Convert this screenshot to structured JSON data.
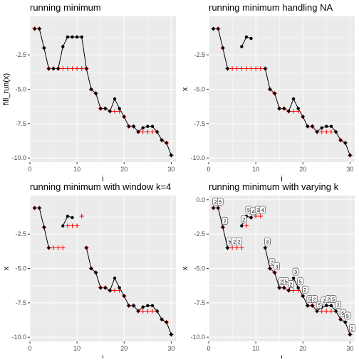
{
  "chart_data": [
    {
      "type": "line",
      "title": "running minimum",
      "xlabel": "i",
      "ylabel": "fill_run(x)",
      "xlim": [
        0,
        31
      ],
      "ylim": [
        -10.3,
        0.3
      ],
      "xticks": [
        "0",
        "10",
        "20",
        "30"
      ],
      "yticks": [
        "-2.5",
        "-5.0",
        "-7.5",
        "-10.0"
      ],
      "grid": true,
      "series": [
        {
          "role": "x",
          "x": [
            1,
            2,
            3,
            4,
            5,
            6,
            7,
            8,
            9,
            10,
            11,
            12,
            13,
            14,
            15,
            16,
            17,
            18,
            19,
            20,
            21,
            22,
            23,
            24,
            25,
            26,
            27,
            28,
            29,
            30
          ],
          "y": [
            -0.6,
            -0.6,
            -2.0,
            -3.5,
            -3.5,
            -3.5,
            -1.9,
            -1.2,
            -1.2,
            -1.2,
            -1.2,
            -3.5,
            -5.0,
            -5.3,
            -6.4,
            -6.4,
            -6.6,
            -5.7,
            -6.4,
            -7.0,
            -7.7,
            -7.7,
            -8.1,
            -7.8,
            -7.7,
            -7.7,
            -8.1,
            -8.7,
            -8.9,
            -9.8
          ]
        },
        {
          "role": "running_min",
          "x": [
            1,
            2,
            3,
            4,
            5,
            6,
            7,
            8,
            9,
            10,
            11,
            12,
            13,
            14,
            15,
            16,
            17,
            18,
            19,
            20,
            21,
            22,
            23,
            24,
            25,
            26,
            27,
            28,
            29,
            30
          ],
          "y": [
            -0.6,
            -0.6,
            -2.0,
            -3.5,
            -3.5,
            -3.5,
            -3.5,
            -3.5,
            -3.5,
            -3.5,
            -3.5,
            -3.5,
            -5.0,
            -5.3,
            -6.4,
            -6.4,
            -6.6,
            -6.6,
            -6.6,
            -7.0,
            -7.7,
            -7.7,
            -8.1,
            -8.1,
            -8.1,
            -8.1,
            -8.1,
            -8.7,
            -8.9,
            -9.8
          ]
        }
      ]
    },
    {
      "type": "line",
      "title": "running minimum handling NA",
      "xlabel": "i",
      "ylabel": "x",
      "xlim": [
        0,
        31
      ],
      "ylim": [
        -10.3,
        0.3
      ],
      "xticks": [
        "0",
        "10",
        "20",
        "30"
      ],
      "yticks": [
        "-2.5",
        "-5.0",
        "-7.5",
        "-10.0"
      ],
      "grid": true,
      "series": [
        {
          "role": "x",
          "x": [
            1,
            2,
            3,
            4,
            5,
            6,
            7,
            8,
            9,
            10,
            11,
            12,
            13,
            14,
            15,
            16,
            17,
            18,
            19,
            20,
            21,
            22,
            23,
            24,
            25,
            26,
            27,
            28,
            29,
            30
          ],
          "y": [
            -0.6,
            -0.6,
            -2.0,
            -3.5,
            null,
            null,
            -1.9,
            -1.2,
            -1.3,
            null,
            null,
            -3.5,
            -5.0,
            -5.3,
            -6.4,
            -6.4,
            -6.6,
            -5.7,
            -6.4,
            -7.0,
            -7.7,
            -7.7,
            -8.1,
            -7.8,
            -7.7,
            -7.7,
            -8.1,
            -8.7,
            -8.9,
            -9.8
          ]
        },
        {
          "role": "running_min",
          "x": [
            1,
            2,
            3,
            4,
            5,
            6,
            7,
            8,
            9,
            10,
            11,
            12,
            13,
            14,
            15,
            16,
            17,
            18,
            19,
            20,
            21,
            22,
            23,
            24,
            25,
            26,
            27,
            28,
            29,
            30
          ],
          "y": [
            -0.6,
            -0.6,
            -2.0,
            -3.5,
            -3.5,
            -3.5,
            -3.5,
            -3.5,
            -3.5,
            -3.5,
            -3.5,
            -3.5,
            -5.0,
            -5.3,
            -6.4,
            -6.4,
            -6.6,
            -6.6,
            -6.6,
            -7.0,
            -7.7,
            -7.7,
            -8.1,
            -8.1,
            -8.1,
            -8.1,
            -8.1,
            -8.7,
            -8.9,
            -9.8
          ]
        }
      ]
    },
    {
      "type": "line",
      "title": "running minimum with window k=4",
      "xlabel": "i",
      "ylabel": "x",
      "xlim": [
        0,
        31
      ],
      "ylim": [
        -10.3,
        0.3
      ],
      "xticks": [
        "0",
        "10",
        "20",
        "30"
      ],
      "yticks": [
        "-2.5",
        "-5.0",
        "-7.5",
        "-10.0"
      ],
      "grid": true,
      "series": [
        {
          "role": "x",
          "x": [
            1,
            2,
            3,
            4,
            5,
            6,
            7,
            8,
            9,
            10,
            11,
            12,
            13,
            14,
            15,
            16,
            17,
            18,
            19,
            20,
            21,
            22,
            23,
            24,
            25,
            26,
            27,
            28,
            29,
            30
          ],
          "y": [
            -0.6,
            -0.6,
            -2.0,
            -3.5,
            null,
            null,
            -1.9,
            -1.2,
            -1.3,
            null,
            null,
            -3.5,
            -5.0,
            -5.3,
            -6.4,
            -6.4,
            -6.6,
            -5.7,
            -6.4,
            -7.0,
            -7.7,
            -7.7,
            -8.1,
            -7.8,
            -7.7,
            -7.7,
            -8.1,
            -8.7,
            -8.9,
            -9.8
          ]
        },
        {
          "role": "running_min",
          "x": [
            1,
            2,
            3,
            4,
            5,
            6,
            7,
            8,
            9,
            10,
            11,
            12,
            13,
            14,
            15,
            16,
            17,
            18,
            19,
            20,
            21,
            22,
            23,
            24,
            25,
            26,
            27,
            28,
            29,
            30
          ],
          "y": [
            -0.6,
            -0.6,
            -2.0,
            -3.5,
            -3.5,
            -3.5,
            -3.5,
            -1.9,
            -1.9,
            -1.9,
            -1.2,
            -3.5,
            -5.0,
            -5.3,
            -6.4,
            -6.4,
            -6.6,
            -6.6,
            -6.6,
            -7.0,
            -7.7,
            -7.7,
            -8.1,
            -8.1,
            -8.1,
            -8.1,
            -8.1,
            -8.7,
            -8.9,
            -9.8
          ]
        }
      ]
    },
    {
      "type": "line",
      "title": "running minimum with varying k",
      "xlabel": "i",
      "ylabel": "x",
      "xlim": [
        0,
        31
      ],
      "ylim": [
        -10.3,
        0.3
      ],
      "xticks": [
        "0",
        "10",
        "20",
        "30"
      ],
      "yticks": [
        "0.0",
        "-2.5",
        "-5.0",
        "-7.5",
        "-10.0"
      ],
      "grid": true,
      "series": [
        {
          "role": "x",
          "x": [
            1,
            2,
            3,
            4,
            5,
            6,
            7,
            8,
            9,
            10,
            11,
            12,
            13,
            14,
            15,
            16,
            17,
            18,
            19,
            20,
            21,
            22,
            23,
            24,
            25,
            26,
            27,
            28,
            29,
            30
          ],
          "y": [
            -0.6,
            -0.6,
            -2.0,
            -3.5,
            null,
            null,
            -1.9,
            -1.2,
            -1.3,
            null,
            null,
            -3.5,
            -5.0,
            -5.3,
            -6.4,
            -6.4,
            -6.6,
            -5.7,
            -6.4,
            -7.0,
            -7.7,
            -7.7,
            -8.1,
            -7.8,
            -7.7,
            -7.7,
            -8.1,
            -8.7,
            -8.9,
            -9.8
          ]
        },
        {
          "role": "running_min",
          "x": [
            1,
            2,
            3,
            4,
            5,
            6,
            7,
            8,
            9,
            10,
            11,
            12,
            13,
            14,
            15,
            16,
            17,
            18,
            19,
            20,
            21,
            22,
            23,
            24,
            25,
            26,
            27,
            28,
            29,
            30
          ],
          "y": [
            -0.6,
            -0.6,
            -2.0,
            -3.5,
            -3.5,
            -3.5,
            -3.5,
            -1.9,
            -1.3,
            -1.2,
            -1.2,
            -3.5,
            -5.0,
            -5.3,
            -6.4,
            -6.4,
            -6.6,
            -6.6,
            -6.6,
            -7.0,
            -7.7,
            -7.7,
            -8.1,
            -8.1,
            -8.1,
            -8.1,
            -8.1,
            -8.7,
            -8.9,
            -9.8
          ]
        }
      ],
      "k_labels": [
        {
          "x": 1,
          "y": -0.6,
          "k": "2"
        },
        {
          "x": 2,
          "y": -0.6,
          "k": "5"
        },
        {
          "x": 3,
          "y": -2.0,
          "k": "2"
        },
        {
          "x": 4,
          "y": -3.5,
          "k": "5"
        },
        {
          "x": 5,
          "y": -3.5,
          "k": "2"
        },
        {
          "x": 6,
          "y": -3.5,
          "k": "2"
        },
        {
          "x": 7,
          "y": -1.9,
          "k": "2"
        },
        {
          "x": 8,
          "y": -1.2,
          "k": "5"
        },
        {
          "x": 9,
          "y": -1.3,
          "k": "4"
        },
        {
          "x": 10,
          "y": -1.2,
          "k": "3"
        },
        {
          "x": 11,
          "y": -1.2,
          "k": "4"
        },
        {
          "x": 12,
          "y": -3.5,
          "k": "3"
        },
        {
          "x": 13,
          "y": -5.0,
          "k": "2"
        },
        {
          "x": 14,
          "y": -5.3,
          "k": "3"
        },
        {
          "x": 15,
          "y": -6.4,
          "k": "2"
        },
        {
          "x": 16,
          "y": -6.4,
          "k": "5"
        },
        {
          "x": 17,
          "y": -6.6,
          "k": "2"
        },
        {
          "x": 18,
          "y": -5.7,
          "k": "3"
        },
        {
          "x": 19,
          "y": -6.4,
          "k": "5"
        },
        {
          "x": 20,
          "y": -7.0,
          "k": "2"
        },
        {
          "x": 21,
          "y": -7.7,
          "k": "5"
        },
        {
          "x": 22,
          "y": -7.7,
          "k": "2"
        },
        {
          "x": 23,
          "y": -8.1,
          "k": "5"
        },
        {
          "x": 24,
          "y": -7.8,
          "k": "2"
        },
        {
          "x": 25,
          "y": -7.7,
          "k": "2"
        },
        {
          "x": 26,
          "y": -7.7,
          "k": "5"
        },
        {
          "x": 27,
          "y": -8.1,
          "k": "2"
        },
        {
          "x": 28,
          "y": -8.7,
          "k": "5"
        },
        {
          "x": 29,
          "y": -8.9,
          "k": "5"
        },
        {
          "x": 30,
          "y": -9.8,
          "k": "2"
        }
      ]
    }
  ],
  "colors": {
    "panel_background": "#ebebeb",
    "grid_line": "#ffffff",
    "x_line": "#000000",
    "x_point": "#000000",
    "running_min_marker": "#ff0000",
    "text": "#000000",
    "tick_text": "#4d4d4d"
  }
}
